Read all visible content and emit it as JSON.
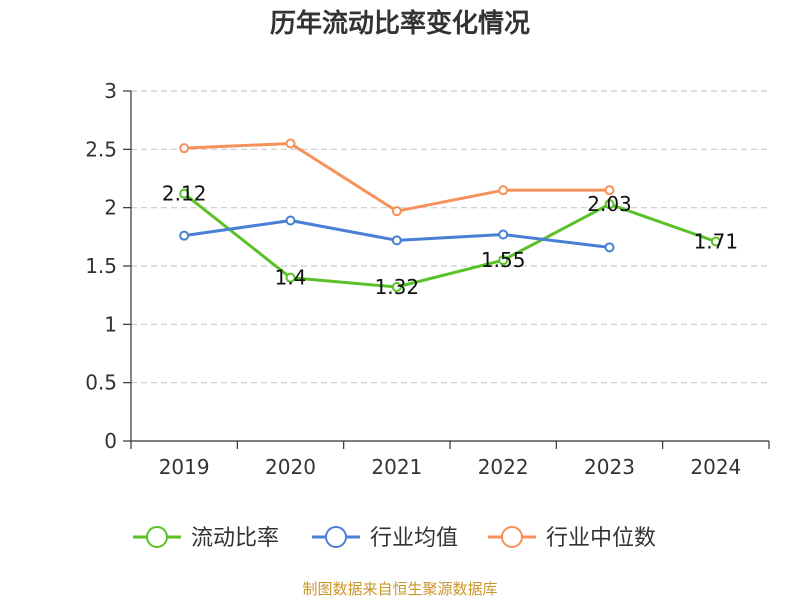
{
  "chart_data": {
    "type": "line",
    "title": "历年流动比率变化情况",
    "xlabel": "",
    "ylabel": "",
    "categories": [
      "2019",
      "2020",
      "2021",
      "2022",
      "2023",
      "2024"
    ],
    "ylim": [
      0,
      3
    ],
    "yticks": [
      "0",
      "0.5",
      "1",
      "1.5",
      "2",
      "2.5",
      "3"
    ],
    "grid": true,
    "legend_position": "bottom",
    "series": [
      {
        "name": "流动比率",
        "color": "#5bc129",
        "values": [
          2.12,
          1.4,
          1.32,
          1.55,
          2.03,
          1.71
        ],
        "data_labels": [
          "2.12",
          "1.4",
          "1.32",
          "1.55",
          "2.03",
          "1.71"
        ]
      },
      {
        "name": "行业均值",
        "color": "#4a7fd6",
        "values": [
          1.76,
          1.89,
          1.72,
          1.77,
          1.66,
          null
        ]
      },
      {
        "name": "行业中位数",
        "color": "#f6915a",
        "values": [
          2.51,
          2.55,
          1.97,
          2.15,
          2.15,
          null
        ]
      }
    ],
    "source": "制图数据来自恒生聚源数据库"
  }
}
